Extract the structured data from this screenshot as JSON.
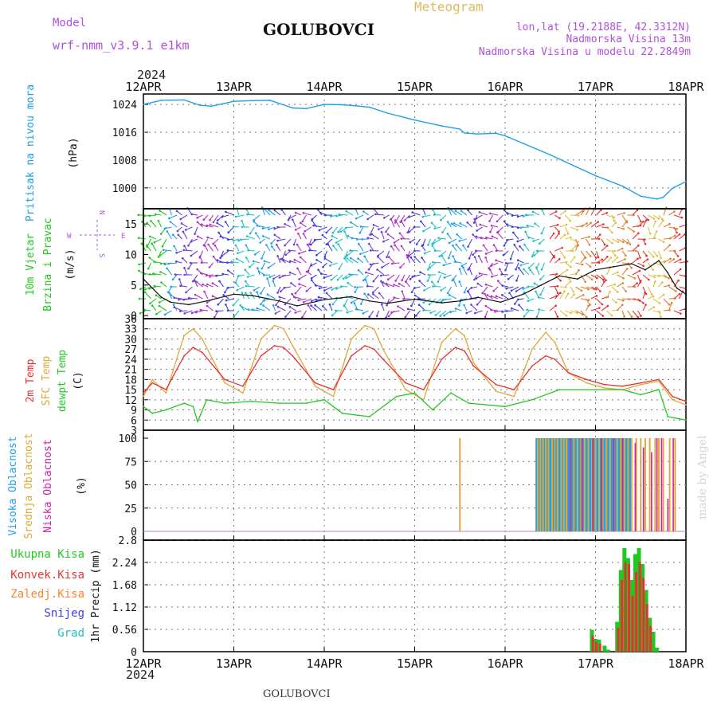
{
  "header": {
    "model_label": "Model",
    "model_name": "wrf-nmm_v3.9.1  e1km",
    "station": "GOLUBOVCI",
    "meteogram_label": "Meteogram",
    "lonlat": "lon,lat (19.2188E, 42.3312N)",
    "elevation": "Nadmorska Visina 13m",
    "model_elevation": "Nadmorska Visina u modelu 22.2849m",
    "footer_station": "GOLUBOVCI",
    "watermark": "made by Angel"
  },
  "time_axis": {
    "year": "2024",
    "labels": [
      "12APR",
      "13APR",
      "14APR",
      "15APR",
      "16APR",
      "17APR",
      "18APR"
    ]
  },
  "colors": {
    "pressure": "#1ea0e6",
    "t2m": "#e83030",
    "sfc_temp": "#e0a83a",
    "dewpt": "#22c822",
    "high_cloud": "#1ea0e6",
    "mid_cloud": "#e0a83a",
    "low_cloud": "#d020a0",
    "precip_total": "#22c822",
    "precip_conv": "#e83030",
    "precip_strat": "#ff8030",
    "snow": "#3c3ce8",
    "hail": "#20c0c0",
    "compass": "#b050e0"
  },
  "panels": {
    "pressure": {
      "ylabel_main": "Pritisak na nivou mora",
      "ylabel_unit": "(hPa)",
      "yticks": [
        "1000",
        "1008",
        "1016",
        "1024"
      ]
    },
    "wind": {
      "ylabel_a": "10m Vjetar",
      "ylabel_b": "Brzina i Pravac",
      "ylabel_unit": "(m/s)",
      "yticks": [
        "0",
        "5",
        "10",
        "15"
      ],
      "compass_n": "N",
      "compass_s": "S",
      "compass_e": "E",
      "compass_w": "W"
    },
    "temp": {
      "ylabel_a": "2m Temp",
      "ylabel_b": "SFC Temp",
      "ylabel_c": "dewpt Temp",
      "ylabel_unit": "(C)",
      "yticks": [
        "3",
        "6",
        "9",
        "12",
        "15",
        "18",
        "21",
        "24",
        "27",
        "30",
        "33",
        "36"
      ]
    },
    "cloud": {
      "ylabel_a": "Visoka Oblacnost",
      "ylabel_b": "Srednja Oblacnost",
      "ylabel_c": "Niska Oblacnost",
      "ylabel_unit": "(%)",
      "yticks": [
        "0",
        "25",
        "50",
        "75",
        "100"
      ]
    },
    "precip": {
      "ylabel": "1hr Precip (mm)",
      "yticks": [
        "0",
        "0.56",
        "1.12",
        "1.68",
        "2.24",
        "2.8"
      ],
      "legend": [
        "Ukupna  Kisa",
        "Konvek.Kisa",
        "Zaledj.Kisa",
        "Snijeg",
        "Grad"
      ]
    }
  },
  "chart_data": [
    {
      "type": "line",
      "title": "",
      "ylabel": "Pritisak na nivou mora (hPa)",
      "ylim": [
        994,
        1027
      ],
      "series": [
        {
          "name": "Pritisak na nivou mora",
          "x": [
            0,
            0.2,
            0.45,
            0.62,
            0.75,
            1.0,
            1.2,
            1.4,
            1.65,
            1.8,
            2.0,
            2.2,
            2.35,
            2.5,
            2.7,
            3.0,
            3.3,
            3.5,
            3.55,
            3.7,
            3.9,
            4.0,
            4.2,
            4.5,
            4.75,
            5.0,
            5.3,
            5.5,
            5.68,
            5.75,
            5.85,
            6.0
          ],
          "y": [
            1024.0,
            1025.2,
            1025.3,
            1023.8,
            1023.5,
            1024.9,
            1025.1,
            1025.2,
            1023.0,
            1022.8,
            1024.0,
            1023.9,
            1023.6,
            1023.2,
            1021.5,
            1019.5,
            1017.8,
            1016.9,
            1015.8,
            1015.5,
            1015.7,
            1015.0,
            1012.8,
            1009.5,
            1006.5,
            1003.5,
            1000.5,
            997.6,
            996.8,
            997.3,
            999.9,
            1001.8
          ]
        }
      ]
    },
    {
      "type": "line",
      "title": "",
      "ylabel": "10m Vjetar Brzina i Pravac (m/s)",
      "ylim": [
        -0.5,
        17.5
      ],
      "series": [
        {
          "name": "10m Vjetar",
          "x": [
            0,
            0.1,
            0.2,
            0.3,
            0.5,
            0.7,
            1.0,
            1.2,
            1.5,
            1.7,
            2.0,
            2.3,
            2.5,
            2.7,
            3.0,
            3.3,
            3.5,
            3.7,
            3.95,
            4.2,
            4.4,
            4.6,
            4.8,
            5.0,
            5.2,
            5.4,
            5.55,
            5.7,
            5.8,
            5.9,
            6.0
          ],
          "y": [
            6.0,
            4.5,
            3.0,
            2.2,
            1.8,
            2.4,
            3.5,
            3.3,
            2.4,
            1.6,
            2.6,
            3.1,
            2.4,
            2.0,
            2.7,
            2.1,
            2.4,
            3.0,
            2.2,
            3.5,
            5.0,
            6.5,
            6.0,
            7.5,
            8.0,
            8.5,
            7.5,
            9.0,
            7.0,
            4.5,
            3.5
          ]
        }
      ]
    },
    {
      "type": "line",
      "title": "",
      "ylabel": "2m Temp / SFC Temp / dewpt Temp (C)",
      "ylim": [
        3,
        36
      ],
      "series": [
        {
          "name": "2m Temp",
          "x": [
            0,
            0.1,
            0.25,
            0.45,
            0.55,
            0.65,
            0.9,
            1.1,
            1.3,
            1.45,
            1.55,
            1.65,
            1.9,
            2.1,
            2.3,
            2.45,
            2.55,
            2.65,
            2.9,
            3.1,
            3.3,
            3.45,
            3.55,
            3.65,
            3.9,
            4.1,
            4.3,
            4.45,
            4.55,
            4.7,
            4.9,
            5.1,
            5.3,
            5.5,
            5.7,
            5.85,
            6.0
          ],
          "y": [
            14,
            17,
            15,
            25,
            27.5,
            26,
            18,
            16,
            25,
            28,
            27.5,
            25,
            17,
            15,
            25,
            28,
            27,
            24,
            17,
            15,
            24,
            27.5,
            26.5,
            22,
            16.5,
            15,
            22,
            25,
            24,
            20,
            18,
            16.5,
            16,
            17,
            18,
            13,
            11.5
          ]
        },
        {
          "name": "SFC Temp",
          "x": [
            0,
            0.1,
            0.25,
            0.45,
            0.55,
            0.65,
            0.9,
            1.1,
            1.3,
            1.45,
            1.55,
            1.65,
            1.9,
            2.1,
            2.3,
            2.45,
            2.55,
            2.65,
            2.9,
            3.1,
            3.3,
            3.45,
            3.55,
            3.65,
            3.9,
            4.1,
            4.3,
            4.45,
            4.55,
            4.7,
            4.9,
            5.1,
            5.3,
            5.5,
            5.7,
            5.85,
            6.0
          ],
          "y": [
            13,
            18,
            14,
            31,
            33,
            30,
            17,
            14,
            30,
            34,
            33,
            28,
            16,
            13,
            30,
            34,
            33,
            27,
            15,
            12,
            29,
            33,
            31,
            23,
            14.5,
            13,
            27,
            32,
            29,
            20,
            17,
            15.5,
            15,
            16.5,
            17.5,
            12,
            10.5
          ]
        },
        {
          "name": "dewpt Temp",
          "x": [
            0,
            0.1,
            0.25,
            0.45,
            0.55,
            0.6,
            0.7,
            0.9,
            1.2,
            1.5,
            1.8,
            2.0,
            2.2,
            2.5,
            2.8,
            3.0,
            3.2,
            3.4,
            3.6,
            4.0,
            4.3,
            4.6,
            5.0,
            5.3,
            5.5,
            5.7,
            5.8,
            6.0
          ],
          "y": [
            10,
            8,
            9,
            11,
            10,
            5.5,
            12,
            11,
            11.5,
            11,
            11,
            12,
            8,
            7,
            13,
            14,
            9,
            14,
            11,
            10,
            12,
            15,
            15,
            15,
            13.5,
            15,
            7,
            6
          ]
        }
      ]
    },
    {
      "type": "bar",
      "title": "",
      "ylabel": "Oblacnost (%)",
      "ylim": [
        0,
        100
      ],
      "series": [
        {
          "name": "Visoka Oblacnost",
          "x": [
            4.35,
            4.37,
            4.4,
            4.43,
            4.46,
            4.5,
            4.53,
            4.56,
            4.6,
            4.63,
            4.66,
            4.7,
            4.74,
            4.78,
            4.82,
            4.86,
            4.9,
            4.94,
            4.98,
            5.02,
            5.06,
            5.1,
            5.14,
            5.18,
            5.22,
            5.26,
            5.3,
            5.34,
            5.38
          ],
          "y": [
            100,
            100,
            100,
            100,
            100,
            100,
            100,
            100,
            100,
            100,
            100,
            100,
            100,
            100,
            100,
            100,
            100,
            100,
            100,
            100,
            100,
            100,
            100,
            100,
            100,
            100,
            100,
            100,
            100
          ]
        },
        {
          "name": "Srednja Oblacnost",
          "x": [
            3.5,
            4.36,
            4.39,
            4.42,
            4.45,
            4.48,
            4.52,
            4.55,
            4.58,
            4.62,
            4.65,
            4.68,
            4.72,
            4.76,
            4.8,
            4.84,
            4.88,
            4.92,
            4.96,
            5.0,
            5.04,
            5.08,
            5.12,
            5.16,
            5.2,
            5.24,
            5.28,
            5.32,
            5.36,
            5.4,
            5.45,
            5.5,
            5.55,
            5.6,
            5.66,
            5.7,
            5.75,
            5.82,
            5.88
          ],
          "y": [
            100,
            100,
            100,
            100,
            100,
            100,
            100,
            100,
            100,
            100,
            100,
            100,
            100,
            100,
            100,
            100,
            100,
            100,
            100,
            100,
            100,
            100,
            100,
            100,
            100,
            100,
            100,
            100,
            100,
            100,
            100,
            100,
            100,
            100,
            100,
            100,
            100,
            100,
            100
          ]
        },
        {
          "name": "Niska Oblacnost",
          "x": [
            4.72,
            4.85,
            4.97,
            5.07,
            5.2,
            5.3,
            5.44,
            5.53,
            5.62,
            5.68,
            5.73,
            5.8,
            5.86
          ],
          "y": [
            100,
            100,
            100,
            100,
            100,
            100,
            95,
            90,
            85,
            100,
            100,
            35,
            100
          ]
        }
      ]
    },
    {
      "type": "bar",
      "title": "",
      "ylabel": "1hr Precip (mm)",
      "ylim": [
        0,
        2.8
      ],
      "series": [
        {
          "name": "Ukupna  Kisa",
          "x": [
            4.96,
            5.0,
            5.04,
            5.1,
            5.14,
            5.24,
            5.28,
            5.32,
            5.36,
            5.4,
            5.44,
            5.48,
            5.52,
            5.56,
            5.6,
            5.64,
            5.68
          ],
          "y": [
            0.55,
            0.32,
            0.3,
            0.15,
            0.05,
            0.75,
            2.05,
            2.6,
            2.35,
            1.8,
            2.45,
            2.6,
            2.2,
            1.55,
            0.85,
            0.5,
            0.1
          ]
        },
        {
          "name": "Konvek.Kisa",
          "x": [
            4.97,
            5.01,
            5.05,
            5.25,
            5.29,
            5.33,
            5.37,
            5.41,
            5.45,
            5.49,
            5.53,
            5.57,
            5.61
          ],
          "y": [
            0.4,
            0.25,
            0.2,
            0.6,
            1.8,
            2.25,
            2.2,
            1.4,
            2.0,
            2.25,
            1.85,
            1.2,
            0.65
          ]
        }
      ]
    }
  ]
}
